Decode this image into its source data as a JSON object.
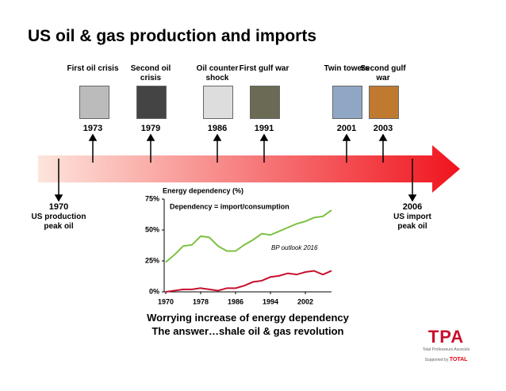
{
  "title": "US oil & gas production and imports",
  "timeline": {
    "above": [
      {
        "label": "First oil crisis",
        "year": "1973"
      },
      {
        "label": "Second oil crisis",
        "year": "1979"
      },
      {
        "label": "Oil counter shock",
        "year": "1986"
      },
      {
        "label": "First gulf war",
        "year": "1991"
      },
      {
        "label": "Twin towers",
        "year": "2001"
      },
      {
        "label": "Second gulf war",
        "year": "2003"
      }
    ],
    "below": [
      {
        "year": "1970",
        "label": "US production peak oil"
      },
      {
        "year": "2006",
        "label": "US import peak oil"
      }
    ]
  },
  "chart_data": {
    "type": "line",
    "title": "Energy dependency (%)",
    "annotations": [
      "Dependency = import/consumption",
      "BP outlook 2016"
    ],
    "x": [
      1970,
      1972,
      1974,
      1976,
      1978,
      1980,
      1982,
      1984,
      1986,
      1988,
      1990,
      1992,
      1994,
      1996,
      1998,
      2000,
      2002,
      2004,
      2006,
      2008
    ],
    "series": [
      {
        "color": "#7dc142",
        "values": [
          24,
          30,
          37,
          38,
          45,
          44,
          37,
          33,
          33,
          38,
          42,
          47,
          46,
          49,
          52,
          55,
          57,
          60,
          61,
          66
        ]
      },
      {
        "color": "#c8102e",
        "values": [
          0,
          1,
          2,
          2,
          3,
          2,
          1,
          3,
          3,
          5,
          8,
          9,
          12,
          13,
          15,
          14,
          16,
          17,
          14,
          17
        ]
      }
    ],
    "xlim": [
      1970,
      2008
    ],
    "xticks": [
      1970,
      1978,
      1986,
      1994,
      2002
    ],
    "ylim": [
      0,
      75
    ],
    "yticks": [
      {
        "value": 0,
        "label": "0%"
      },
      {
        "value": 25,
        "label": "25%"
      },
      {
        "value": 50,
        "label": "50%"
      },
      {
        "value": 75,
        "label": "75%"
      }
    ]
  },
  "footer": [
    "Worrying increase of energy dependency",
    "The answer…shale oil & gas revolution"
  ],
  "logo": {
    "name": "TPA",
    "subtitle": "Total Professeurs Associés",
    "supported": "Supported by",
    "brand": "TOTAL"
  }
}
